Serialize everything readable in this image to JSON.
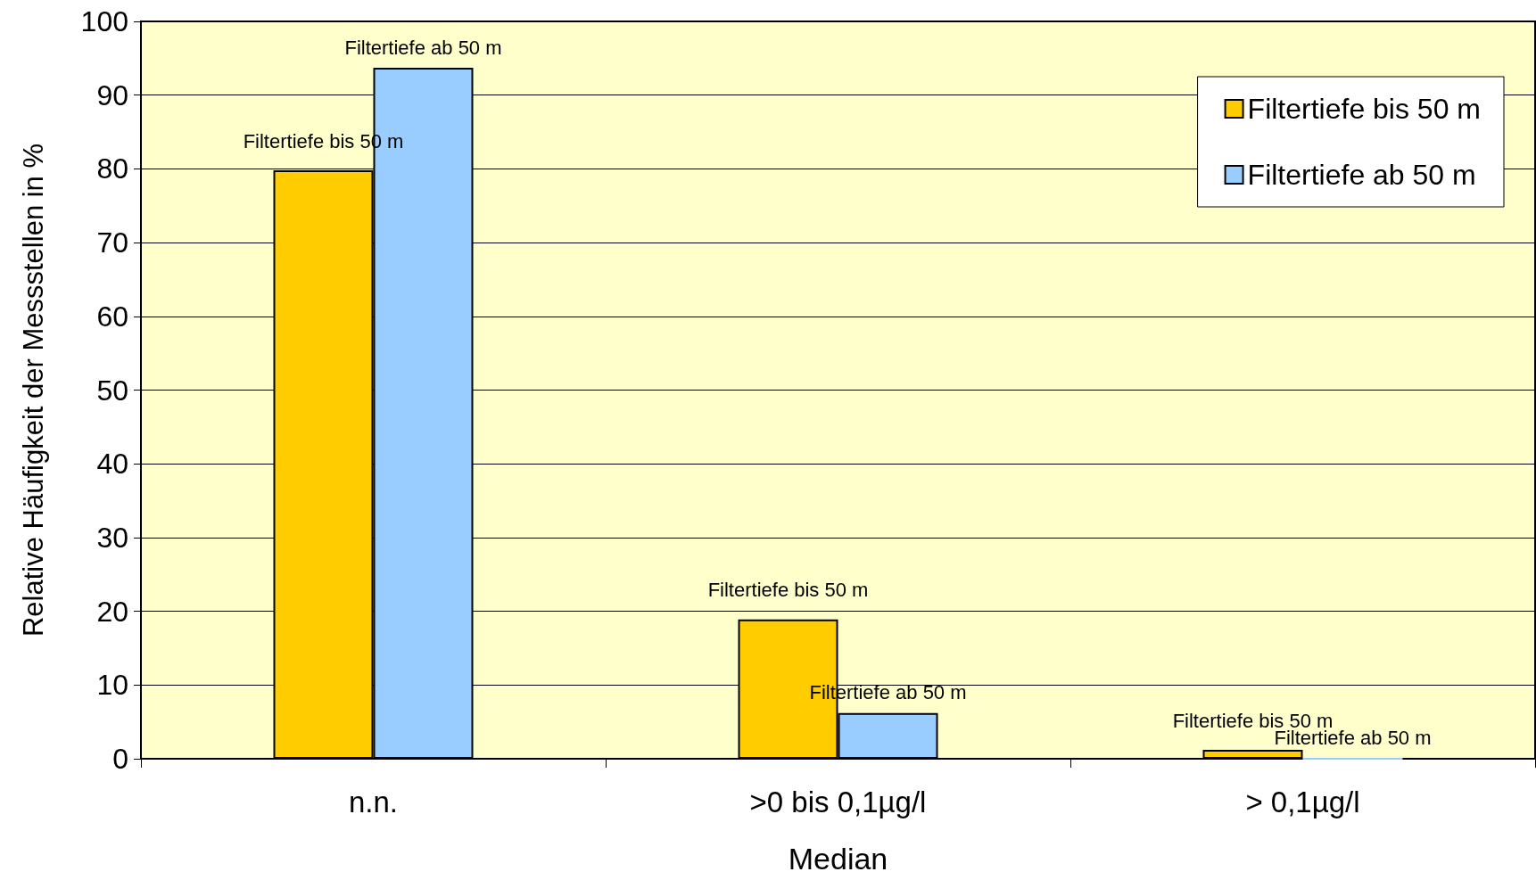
{
  "chart_data": {
    "type": "bar",
    "xlabel": "Median",
    "ylabel": "Relative Häufigkeit der Messstellen in %",
    "categories": [
      "n.n.",
      ">0 bis 0,1µg/l",
      "> 0,1µg/l"
    ],
    "series": [
      {
        "name": "Filtertiefe bis 50 m",
        "color": "#ffcc00",
        "values": [
          79.8,
          18.9,
          1.2
        ],
        "value_labels": [
          "Filtertiefe bis 50 m",
          "Filtertiefe bis 50 m",
          "Filtertiefe bis 50 m"
        ]
      },
      {
        "name": "Filtertiefe ab 50 m",
        "color": "#99ccff",
        "values": [
          93.7,
          6.2,
          0
        ],
        "value_labels": [
          "Filtertiefe ab 50 m",
          "Filtertiefe ab 50 m",
          "Filtertiefe ab 50 m"
        ]
      }
    ],
    "ylim": [
      0,
      100
    ],
    "yticks": [
      0,
      10,
      20,
      30,
      40,
      50,
      60,
      70,
      80,
      90,
      100
    ],
    "grid": "y",
    "legend": "top right"
  }
}
